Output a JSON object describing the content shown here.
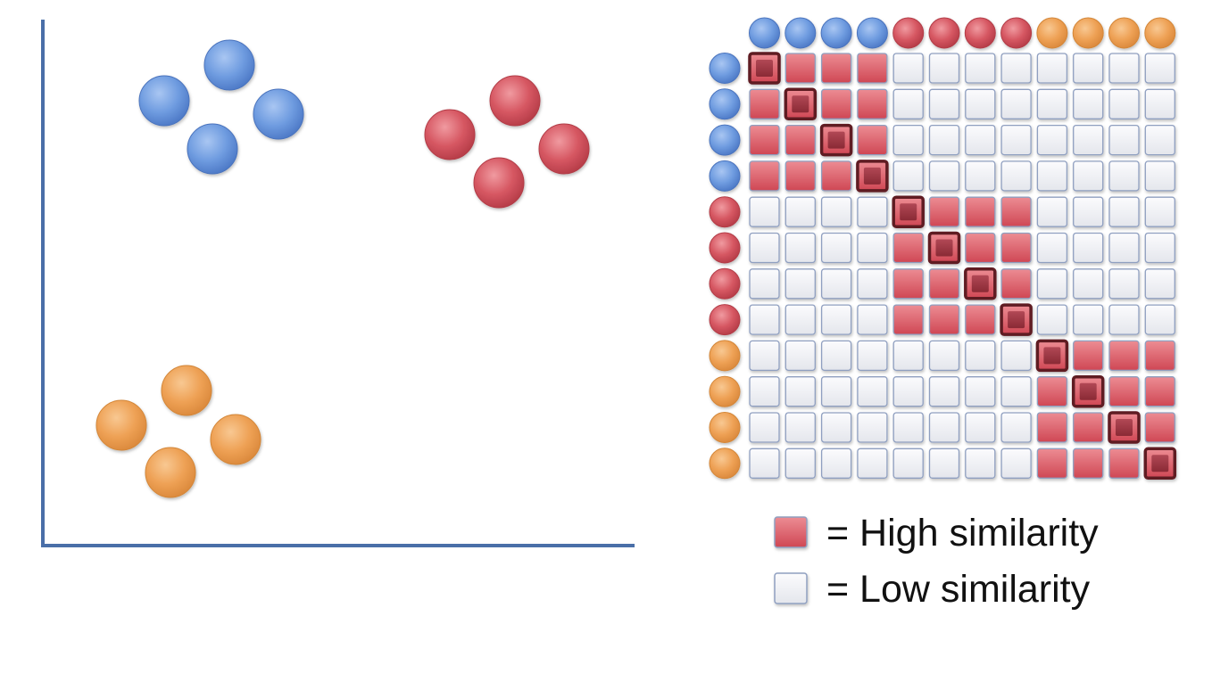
{
  "colors": {
    "blue": "#5f8fd8",
    "red": "#d14e5a",
    "orange": "#eea054",
    "axis": "#4a6fa8",
    "high_cell": "#d8535f",
    "low_cell": "#eef0f4",
    "diagonal_cell": "#8c2d38",
    "cell_border": "#8f9fc0"
  },
  "clusters": [
    {
      "name": "blue",
      "color_key": "blue",
      "count": 4
    },
    {
      "name": "red",
      "color_key": "red",
      "count": 4
    },
    {
      "name": "orange",
      "color_key": "orange",
      "count": 4
    }
  ],
  "matrix": {
    "size": 12,
    "labels": [
      "blue",
      "blue",
      "blue",
      "blue",
      "red",
      "red",
      "red",
      "red",
      "orange",
      "orange",
      "orange",
      "orange"
    ],
    "levels": [
      [
        "self",
        "high",
        "high",
        "high",
        "low",
        "low",
        "low",
        "low",
        "low",
        "low",
        "low",
        "low"
      ],
      [
        "high",
        "self",
        "high",
        "high",
        "low",
        "low",
        "low",
        "low",
        "low",
        "low",
        "low",
        "low"
      ],
      [
        "high",
        "high",
        "self",
        "high",
        "low",
        "low",
        "low",
        "low",
        "low",
        "low",
        "low",
        "low"
      ],
      [
        "high",
        "high",
        "high",
        "self",
        "low",
        "low",
        "low",
        "low",
        "low",
        "low",
        "low",
        "low"
      ],
      [
        "low",
        "low",
        "low",
        "low",
        "self",
        "high",
        "high",
        "high",
        "low",
        "low",
        "low",
        "low"
      ],
      [
        "low",
        "low",
        "low",
        "low",
        "high",
        "self",
        "high",
        "high",
        "low",
        "low",
        "low",
        "low"
      ],
      [
        "low",
        "low",
        "low",
        "low",
        "high",
        "high",
        "self",
        "high",
        "low",
        "low",
        "low",
        "low"
      ],
      [
        "low",
        "low",
        "low",
        "low",
        "high",
        "high",
        "high",
        "self",
        "low",
        "low",
        "low",
        "low"
      ],
      [
        "low",
        "low",
        "low",
        "low",
        "low",
        "low",
        "low",
        "low",
        "self",
        "high",
        "high",
        "high"
      ],
      [
        "low",
        "low",
        "low",
        "low",
        "low",
        "low",
        "low",
        "low",
        "high",
        "self",
        "high",
        "high"
      ],
      [
        "low",
        "low",
        "low",
        "low",
        "low",
        "low",
        "low",
        "low",
        "high",
        "high",
        "self",
        "high"
      ],
      [
        "low",
        "low",
        "low",
        "low",
        "low",
        "low",
        "low",
        "low",
        "high",
        "high",
        "high",
        "self"
      ]
    ]
  },
  "legend": {
    "high_label": "= High similarity",
    "low_label": "= Low similarity"
  }
}
